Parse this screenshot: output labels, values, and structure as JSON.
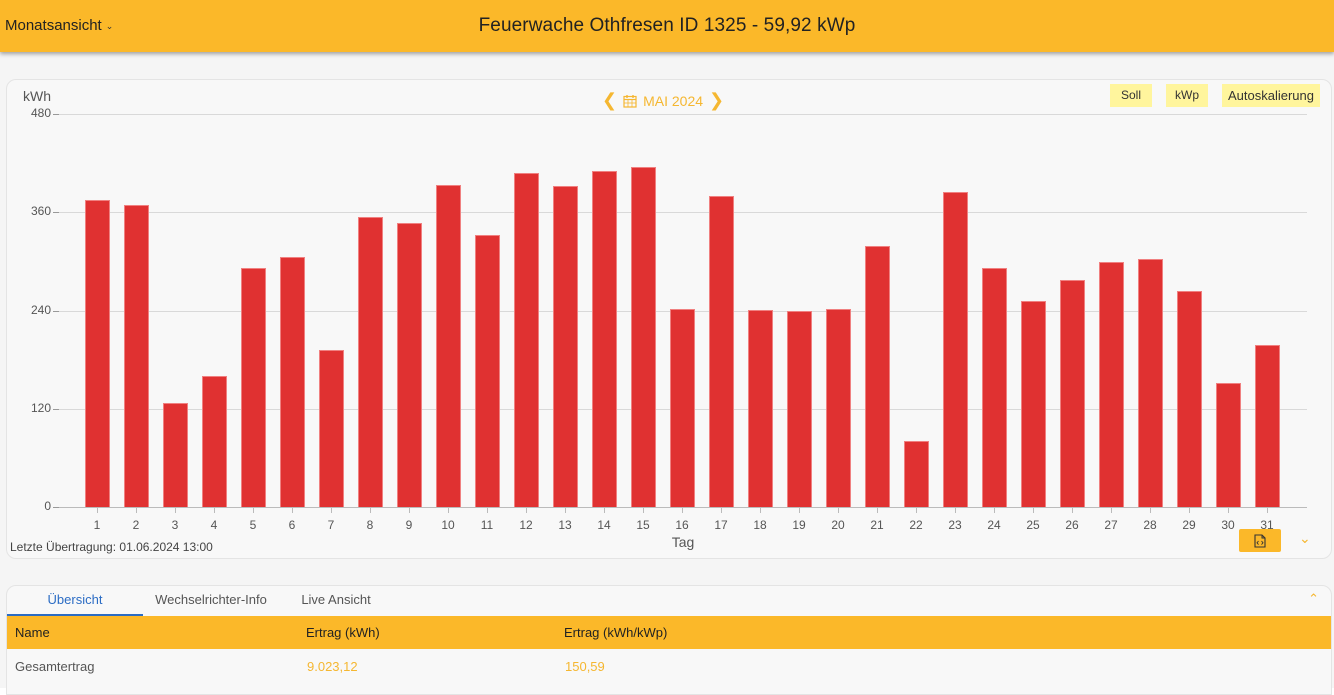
{
  "header": {
    "view_selector": "Monatsansicht",
    "title": "Feuerwache Othfresen ID 1325 - 59,92 kWp",
    "right_partial": "("
  },
  "chart_controls": {
    "month_label": "MAI 2024",
    "prev_icon": "chevron-left-icon",
    "next_icon": "chevron-right-icon",
    "calendar_icon": "calendar-icon",
    "chips": [
      "Soll",
      "kWp",
      "Autoskalierung"
    ]
  },
  "chart_data": {
    "type": "bar",
    "title": "MAI 2024",
    "xlabel": "Tag",
    "ylabel": "kWh",
    "ylim": [
      0,
      480
    ],
    "yticks": [
      0,
      120,
      240,
      360,
      480
    ],
    "grid": true,
    "legend": null,
    "bar_color": "#e03131",
    "categories": [
      "1",
      "2",
      "3",
      "4",
      "5",
      "6",
      "7",
      "8",
      "9",
      "10",
      "11",
      "12",
      "13",
      "14",
      "15",
      "16",
      "17",
      "18",
      "19",
      "20",
      "21",
      "22",
      "23",
      "24",
      "25",
      "26",
      "27",
      "28",
      "29",
      "30",
      "31"
    ],
    "values": [
      375,
      369,
      127,
      160,
      292,
      305,
      192,
      354,
      347,
      393,
      332,
      408,
      392,
      410,
      415,
      242,
      380,
      241,
      239,
      242,
      319,
      81,
      385,
      292,
      252,
      277,
      299,
      303,
      264,
      151,
      198
    ]
  },
  "footer": {
    "last_transfer": "Letzte Übertragung: 01.06.2024 13:00",
    "export_icon": "file-code-icon",
    "expand_icon": "chevron-down-icon"
  },
  "table": {
    "tabs": [
      "Übersicht",
      "Wechselrichter-Info",
      "Live Ansicht"
    ],
    "active_tab": 0,
    "columns": [
      "Name",
      "Ertrag (kWh)",
      "Ertrag (kWh/kWp)"
    ],
    "rows": [
      {
        "name": "Gesamtertrag",
        "ertrag_kwh": "9.023,12",
        "ertrag_kwh_kwp": "150,59"
      }
    ]
  },
  "colors": {
    "accent": "#fbb829",
    "accent_text": "#f5b731",
    "bar": "#e03131",
    "chip_bg": "#fff59d",
    "active_tab": "#2b6cc4"
  }
}
